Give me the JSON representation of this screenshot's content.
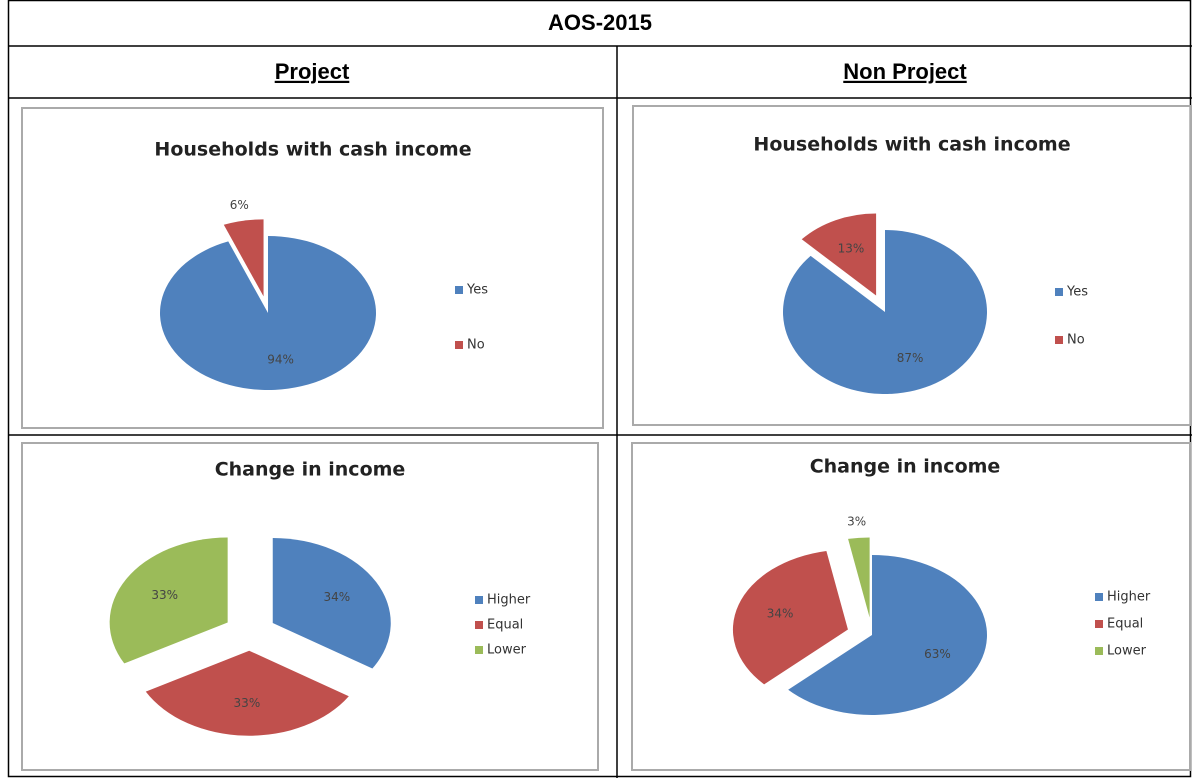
{
  "table": {
    "title": "AOS-2015",
    "headers": [
      "Project",
      "Non Project"
    ]
  },
  "chart_data": [
    {
      "type": "pie",
      "title": "Households with cash income",
      "categories": [
        "Yes",
        "No"
      ],
      "values": [
        94,
        6
      ],
      "value_labels": [
        "94%",
        "6%"
      ],
      "colors": [
        "#4f81bd",
        "#c0504d"
      ],
      "legend": "right"
    },
    {
      "type": "pie",
      "title": "Households with cash income",
      "categories": [
        "Yes",
        "No"
      ],
      "values": [
        87,
        13
      ],
      "value_labels": [
        "87%",
        "13%"
      ],
      "colors": [
        "#4f81bd",
        "#c0504d"
      ],
      "legend": "right"
    },
    {
      "type": "pie",
      "title": "Change in income",
      "categories": [
        "Higher",
        "Equal",
        "Lower"
      ],
      "values": [
        34,
        33,
        33
      ],
      "value_labels": [
        "34%",
        "33%",
        "33%"
      ],
      "colors": [
        "#4f81bd",
        "#c0504d",
        "#9bbb59"
      ],
      "legend": "right"
    },
    {
      "type": "pie",
      "title": "Change in income",
      "categories": [
        "Higher",
        "Equal",
        "Lower"
      ],
      "values": [
        63,
        34,
        3
      ],
      "value_labels": [
        "63%",
        "34%",
        "3%"
      ],
      "colors": [
        "#4f81bd",
        "#c0504d",
        "#9bbb59"
      ],
      "legend": "right"
    }
  ]
}
